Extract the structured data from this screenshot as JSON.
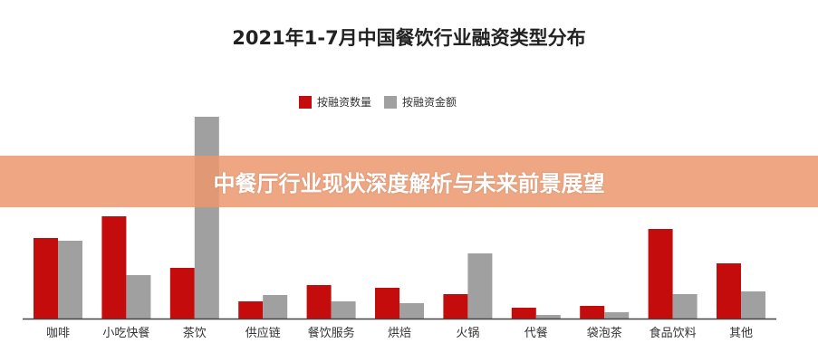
{
  "chart_data": {
    "type": "bar",
    "title": "2021年1-7月中国餐饮行业融资类型分布",
    "categories": [
      "咖啡",
      "小吃快餐",
      "茶饮",
      "供应链",
      "餐饮服务",
      "烘焙",
      "火锅",
      "代餐",
      "袋泡茶",
      "食品饮料",
      "其他"
    ],
    "series": [
      {
        "name": "按融资数量",
        "color": "#C40C0C",
        "values": [
          89,
          113,
          56,
          19,
          37,
          34,
          27,
          12,
          14,
          99,
          61
        ]
      },
      {
        "name": "按融资金额",
        "color": "#A0A0A0",
        "values": [
          86,
          48,
          223,
          26,
          19,
          17,
          72,
          4,
          7,
          27,
          30
        ]
      }
    ],
    "ylim": [
      0,
      225
    ],
    "y_axis_shown": false,
    "grid": false,
    "legend_placement": "top-center"
  },
  "banner": {
    "text": "中餐厅行业现状深度解析与未来前景展望",
    "color": "#EC966C"
  }
}
